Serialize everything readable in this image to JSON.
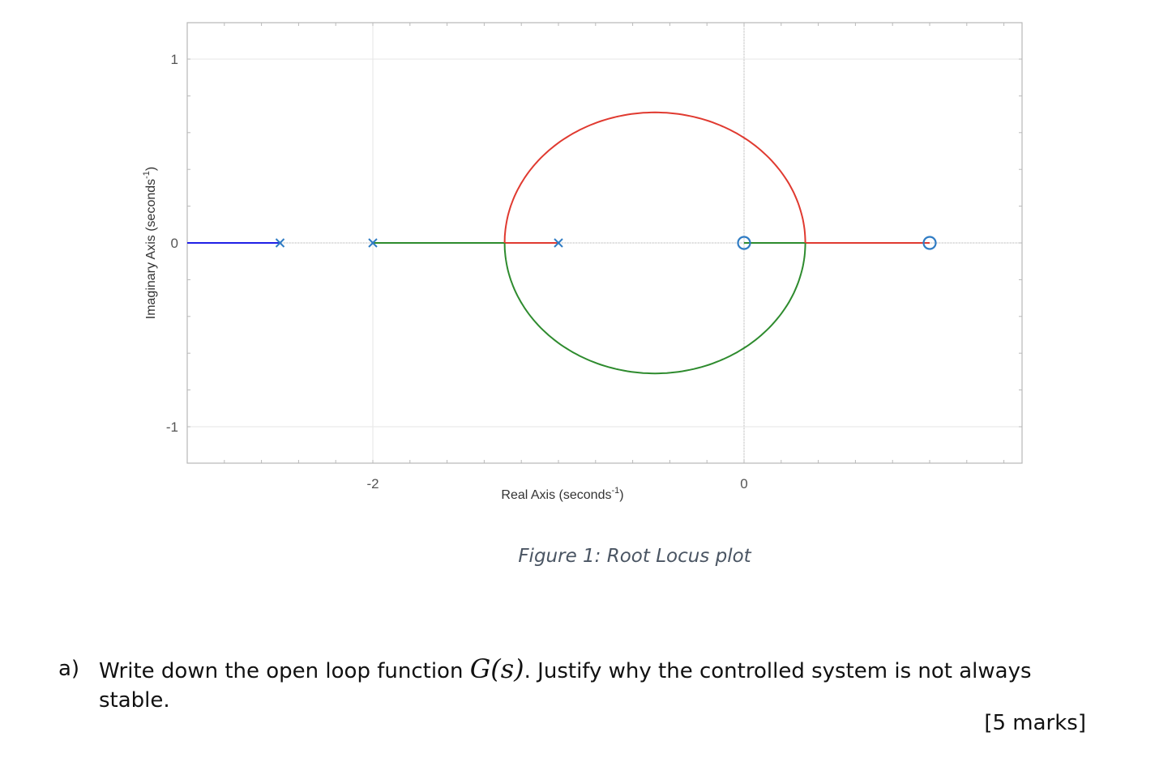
{
  "chart_data": {
    "type": "line",
    "title": "",
    "xlabel": "Real Axis (seconds",
    "xlabel_sup": "-1",
    "xlabel_end": ")",
    "ylabel": "Imaginary Axis (seconds",
    "ylabel_sup": "-1",
    "ylabel_end": ")",
    "xlim": [
      -3.0,
      1.5
    ],
    "ylim": [
      -1.2,
      1.2
    ],
    "xticks": [
      {
        "value": -2,
        "label": "-2"
      },
      {
        "value": 0,
        "label": "0"
      }
    ],
    "yticks": [
      {
        "value": 1,
        "label": "1"
      },
      {
        "value": 0,
        "label": "0"
      },
      {
        "value": -1,
        "label": "-1"
      }
    ],
    "grid": true,
    "poles": [
      -2.5,
      -2.0,
      -1.0
    ],
    "zeros": [
      0.0,
      1.0
    ],
    "breakaway_point": -1.29,
    "breakin_point": 0.33,
    "circle_center": -0.48,
    "circle_radius_imag": 0.71,
    "series": [
      {
        "color": "#1f1fe6",
        "points": [
          [
            -3.0,
            0
          ],
          [
            -2.5,
            0
          ]
        ]
      },
      {
        "color": "#2e8b2e",
        "points": [
          [
            -2.0,
            0
          ],
          [
            -1.29,
            0
          ]
        ]
      },
      {
        "color": "#e03a30",
        "points": [
          [
            -1.0,
            0
          ],
          [
            -1.29,
            0
          ]
        ]
      },
      {
        "color": "#2e8b2e",
        "points": [
          [
            0.0,
            0
          ],
          [
            0.33,
            0
          ]
        ]
      },
      {
        "color": "#e03a30",
        "points": [
          [
            1.0,
            0
          ],
          [
            0.33,
            0
          ]
        ]
      }
    ],
    "arc_upper_color": "#e03a30",
    "arc_lower_color": "#2e8b2e",
    "marker_color": "#2f7cc4"
  },
  "caption": "Figure 1: Root Locus plot",
  "question": {
    "letter": "a)",
    "text_before": "Write down the open loop function ",
    "math": "G(s)",
    "text_after": ". Justify why the controlled system is not always stable."
  },
  "marks": "[5 marks]"
}
